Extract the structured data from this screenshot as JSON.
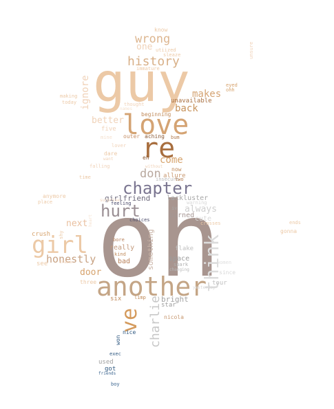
{
  "words": [
    {
      "id": "oh",
      "text": "oh",
      "color": "#a8958f"
    },
    {
      "id": "guy",
      "text": "guy",
      "color": "#ecc9a6"
    },
    {
      "id": "another",
      "text": "another",
      "color": "#c4a586"
    },
    {
      "id": "love",
      "text": "love",
      "color": "#d4a373"
    },
    {
      "id": "re",
      "text": "re",
      "color": "#a86e3e"
    },
    {
      "id": "girl",
      "text": "girl",
      "color": "#ecc9a6"
    },
    {
      "id": "chapter",
      "text": "chapter",
      "color": "#7a7590"
    },
    {
      "id": "hurt",
      "text": "hurt",
      "color": "#9a8f94"
    },
    {
      "id": "think",
      "text": "think",
      "color": "#dcdcdc"
    },
    {
      "id": "ve",
      "text": "ve",
      "color": "#d49a5c"
    },
    {
      "id": "history",
      "text": "history",
      "color": "#d8b088"
    },
    {
      "id": "wrong",
      "text": "wrong",
      "color": "#ddb690"
    },
    {
      "id": "charlie",
      "text": "charlie",
      "color": "#c8c8c8"
    },
    {
      "id": "honestly",
      "text": "honestly",
      "color": "#c8a283"
    },
    {
      "id": "don",
      "text": "don",
      "color": "#b8a89e"
    },
    {
      "id": "makes",
      "text": "makes",
      "color": "#d4a373"
    },
    {
      "id": "back",
      "text": "back",
      "color": "#c7935c"
    },
    {
      "id": "come",
      "text": "come",
      "color": "#d6a36c"
    },
    {
      "id": "better",
      "text": "better",
      "color": "#f0d2b8"
    },
    {
      "id": "ignore",
      "text": "ignore",
      "color": "#f0d2b8"
    },
    {
      "id": "always",
      "text": "always",
      "color": "#cfcfcf"
    },
    {
      "id": "next",
      "text": "next",
      "color": "#eac0a0"
    },
    {
      "id": "door",
      "text": "door",
      "color": "#d6a26c"
    },
    {
      "id": "one",
      "text": "one",
      "color": "#f0d2b8"
    },
    {
      "id": "something",
      "text": "something",
      "color": "#c9b3a6"
    },
    {
      "id": "girlfriend",
      "text": "girlfriend",
      "color": "#6e6a7c"
    },
    {
      "id": "lackluster",
      "text": "lackluster",
      "color": "#a8a8a8"
    },
    {
      "id": "bright",
      "text": "bright",
      "color": "#a3a3a3"
    },
    {
      "id": "cute",
      "text": "cute",
      "color": "#d9d9d9"
    },
    {
      "id": "burned",
      "text": "burned",
      "color": "#a59693"
    },
    {
      "id": "space",
      "text": "space",
      "color": "#9c9c9c"
    },
    {
      "id": "bad",
      "text": "bad",
      "color": "#b8815a"
    },
    {
      "id": "really",
      "text": "really",
      "color": "#c49a7c"
    },
    {
      "id": "crush",
      "text": "crush",
      "color": "#d6a26c"
    },
    {
      "id": "see",
      "text": "see",
      "color": "#ecc9a6"
    },
    {
      "id": "five",
      "text": "five",
      "color": "#f0d2b8"
    },
    {
      "id": "six",
      "text": "six",
      "color": "#c08a5a"
    },
    {
      "id": "star",
      "text": "star",
      "color": "#9d9d9d"
    },
    {
      "id": "flake",
      "text": "flake",
      "color": "#c0c0c0"
    },
    {
      "id": "used",
      "text": "used",
      "color": "#9f9f9f"
    },
    {
      "id": "got",
      "text": "got",
      "color": "#2f5880"
    },
    {
      "id": "won",
      "text": "won",
      "color": "#2f5880"
    },
    {
      "id": "nice",
      "text": "nice",
      "color": "#2f5880"
    },
    {
      "id": "exec",
      "text": "exec",
      "color": "#2f5880"
    },
    {
      "id": "friends",
      "text": "friends",
      "color": "#3c6690"
    },
    {
      "id": "boy",
      "text": "boy",
      "color": "#3c6690"
    },
    {
      "id": "unavailable",
      "text": "unavailable",
      "color": "#a86e3e"
    },
    {
      "id": "beginning",
      "text": "beginning",
      "color": "#c08a5a"
    },
    {
      "id": "outer",
      "text": "outer",
      "color": "#c69068"
    },
    {
      "id": "aching",
      "text": "aching",
      "color": "#8a5a36"
    },
    {
      "id": "bum",
      "text": "bum",
      "color": "#b07a4e"
    },
    {
      "id": "eh",
      "text": "eh",
      "color": "#8a5a36"
    },
    {
      "id": "allure",
      "text": "allure",
      "color": "#c89870"
    },
    {
      "id": "now",
      "text": "now",
      "color": "#c08a5a"
    },
    {
      "id": "insecure",
      "text": "insecure",
      "color": "#b8b8b8"
    },
    {
      "id": "two",
      "text": "two",
      "color": "#b07a4e"
    },
    {
      "id": "feeling",
      "text": "feeling",
      "color": "#4a4a6a"
    },
    {
      "id": "choices",
      "text": "choices",
      "color": "#4a4a6a"
    },
    {
      "id": "iv",
      "text": "iv",
      "color": "#a8a8a8"
    },
    {
      "id": "warning",
      "text": "warning",
      "color": "#d8d8d8"
    },
    {
      "id": "know",
      "text": "know",
      "color": "#ecc9a6"
    },
    {
      "id": "sleaze",
      "text": "sleaze",
      "color": "#ecc9a6"
    },
    {
      "id": "utiized",
      "text": "utiized",
      "color": "#ecc9a6"
    },
    {
      "id": "immature",
      "text": "immature",
      "color": "#ecc9a6"
    },
    {
      "id": "eyed",
      "text": "eyed",
      "color": "#d6a26c"
    },
    {
      "id": "ohh",
      "text": "ohh",
      "color": "#d6a26c"
    },
    {
      "id": "making",
      "text": "making",
      "color": "#ecc9a6"
    },
    {
      "id": "today",
      "text": "today",
      "color": "#ecc9a6"
    },
    {
      "id": "thought",
      "text": "thought",
      "color": "#f0d2b8"
    },
    {
      "id": "names",
      "text": "names",
      "color": "#f5e1cf"
    },
    {
      "id": "mine",
      "text": "mine",
      "color": "#f5e1cf"
    },
    {
      "id": "lover",
      "text": "lover",
      "color": "#f0d2b8"
    },
    {
      "id": "dare",
      "text": "dare",
      "color": "#ecc9a6"
    },
    {
      "id": "want",
      "text": "want",
      "color": "#f0d2b8"
    },
    {
      "id": "without",
      "text": "without",
      "color": "#f0d2b8"
    },
    {
      "id": "falling",
      "text": "falling",
      "color": "#f0d2b8"
    },
    {
      "id": "time",
      "text": "time",
      "color": "#ecc9a6"
    },
    {
      "id": "anymore",
      "text": "anymore",
      "color": "#ecc9a6"
    },
    {
      "id": "place",
      "text": "place",
      "color": "#ecc9a6"
    },
    {
      "id": "surprise",
      "text": "surprise",
      "color": "#f0d2b8"
    },
    {
      "id": "shy",
      "text": "shy",
      "color": "#ecc9a6"
    },
    {
      "id": "heart",
      "text": "heart",
      "color": "#f5e1cf"
    },
    {
      "id": "kind",
      "text": "kind",
      "color": "#c08a5a"
    },
    {
      "id": "bore",
      "text": "bore",
      "color": "#b8815a"
    },
    {
      "id": "drama",
      "text": "drama",
      "color": "#f0d2b8"
    },
    {
      "id": "three",
      "text": "three",
      "color": "#ecc9a6"
    },
    {
      "id": "limp",
      "text": "limp",
      "color": "#c08a5a"
    },
    {
      "id": "spark",
      "text": "spark",
      "color": "#b0b0b0"
    },
    {
      "id": "changing",
      "text": "changing",
      "color": "#b8b8b8"
    },
    {
      "id": "women",
      "text": "women",
      "color": "#e0e0e0"
    },
    {
      "id": "since",
      "text": "since",
      "color": "#d8d8d8"
    },
    {
      "id": "tour",
      "text": "tour",
      "color": "#c0c0c0"
    },
    {
      "id": "yesterday",
      "text": "yesterday",
      "color": "#d8d8d8"
    },
    {
      "id": "nicola",
      "text": "nicola",
      "color": "#c89870"
    },
    {
      "id": "crosses",
      "text": "crosses",
      "color": "#ecc9a6"
    },
    {
      "id": "ends",
      "text": "ends",
      "color": "#ecc9a6"
    },
    {
      "id": "gonna",
      "text": "gonna",
      "color": "#ecc9a6"
    },
    {
      "id": "unsure",
      "text": "unsure",
      "color": "#f0d2b8"
    }
  ]
}
